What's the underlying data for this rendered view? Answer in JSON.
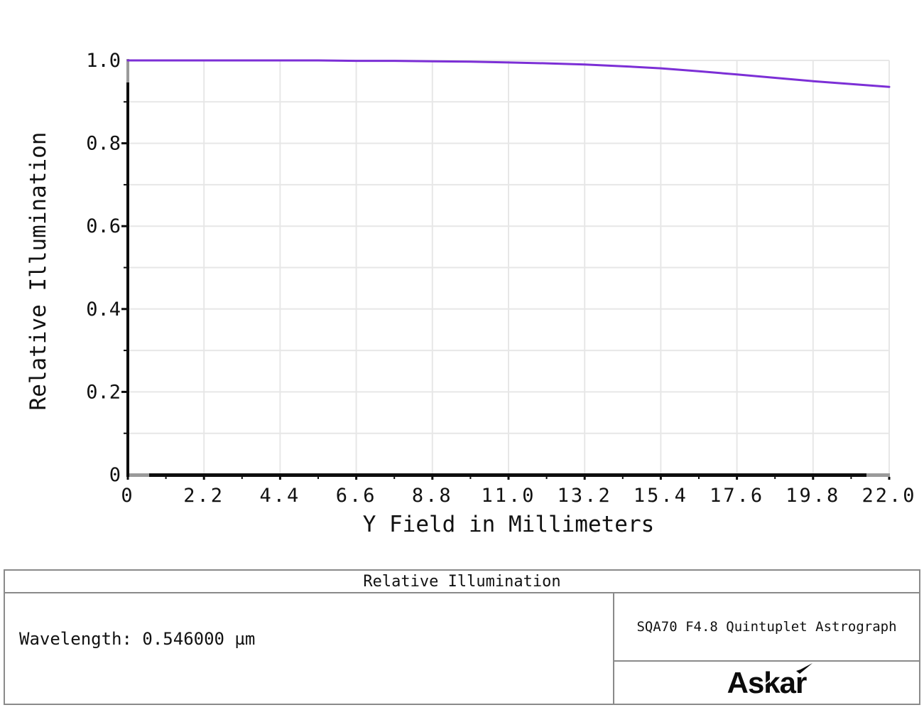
{
  "chart_data": {
    "type": "line",
    "title": "Relative Illumination",
    "xlabel": "Y Field in Millimeters",
    "ylabel": "Relative Illumination",
    "xlim": [
      0,
      22
    ],
    "ylim": [
      0,
      1
    ],
    "grid": true,
    "minor_y_step": 0.1,
    "xticks": {
      "values": [
        0,
        2.2,
        4.4,
        6.6,
        8.8,
        11.0,
        13.2,
        15.4,
        17.6,
        19.8,
        22.0
      ],
      "labels": [
        "0",
        "2.2",
        "4.4",
        "6.6",
        "8.8",
        "11.0",
        "13.2",
        "15.4",
        "17.6",
        "19.8",
        "22.0"
      ]
    },
    "yticks": {
      "values": [
        1.0,
        0.8,
        0.6,
        0.4,
        0.2,
        0
      ],
      "labels": [
        "1.0",
        "0.8",
        "0.6",
        "0.4",
        "0.2",
        "0"
      ]
    },
    "series": [
      {
        "name": "Relative Illumination",
        "color": "#7C2FD6",
        "x": [
          0,
          1.1,
          2.2,
          3.3,
          4.4,
          5.5,
          6.6,
          7.7,
          8.8,
          9.9,
          11.0,
          12.1,
          13.2,
          14.3,
          15.4,
          16.5,
          17.6,
          18.7,
          19.8,
          20.9,
          22.0
        ],
        "y": [
          1.0,
          1.0,
          1.0,
          1.0,
          1.0,
          1.0,
          0.999,
          0.999,
          0.998,
          0.997,
          0.995,
          0.993,
          0.99,
          0.986,
          0.981,
          0.974,
          0.966,
          0.958,
          0.95,
          0.943,
          0.936
        ]
      }
    ],
    "colors": {
      "curve": "#7C2FD6",
      "grid": "#E7E7E7",
      "axis_black": "#0d0d0d",
      "frame_gray": "#9A9A9A",
      "text": "#111111"
    }
  },
  "footer": {
    "title": "Relative Illumination",
    "wavelength": "Wavelength: 0.546000 µm",
    "lens_title": "SQA70 F4.8 Quintuplet Astrograph",
    "brand": "Askar"
  }
}
